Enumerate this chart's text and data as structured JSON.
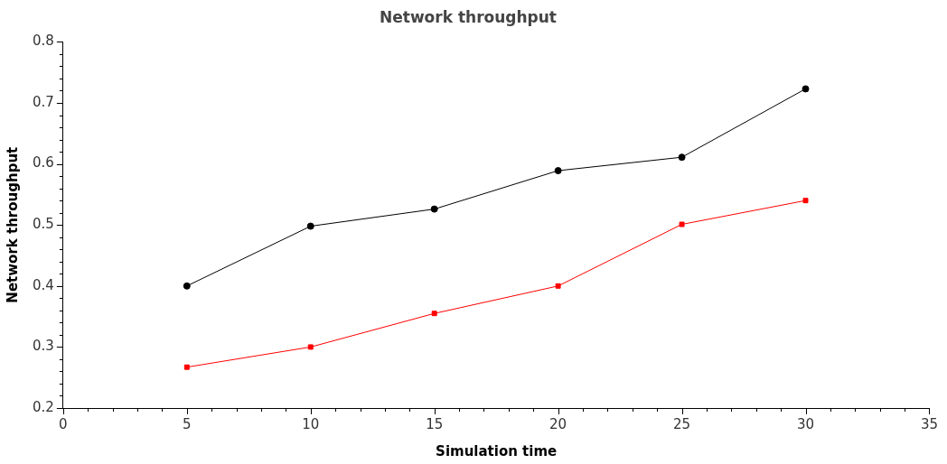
{
  "chart_data": {
    "type": "line",
    "title": "Network throughput",
    "xlabel": "Simulation time",
    "ylabel": "Network throughput",
    "x": [
      5,
      10,
      15,
      20,
      25,
      30
    ],
    "series": [
      {
        "color": "#000000",
        "marker": "circle",
        "values": [
          0.4,
          0.498,
          0.526,
          0.589,
          0.611,
          0.723
        ]
      },
      {
        "color": "#ff0000",
        "marker": "square",
        "values": [
          0.267,
          0.3,
          0.355,
          0.4,
          0.501,
          0.54
        ]
      }
    ],
    "xlim": [
      0,
      35
    ],
    "xticks": [
      0,
      {
        "value": 1,
        "label": null
      },
      {
        "value": 2,
        "label": null
      },
      {
        "value": 3,
        "label": null
      },
      {
        "value": 4,
        "label": null
      },
      5,
      {
        "value": 6,
        "label": null
      },
      {
        "value": 7,
        "label": null
      },
      {
        "value": 8,
        "label": null
      },
      {
        "value": 9,
        "label": null
      },
      10,
      {
        "value": 11,
        "label": null
      },
      {
        "value": 12,
        "label": null
      },
      {
        "value": 13,
        "label": null
      },
      {
        "value": 14,
        "label": null
      },
      15,
      {
        "value": 16,
        "label": null
      },
      {
        "value": 17,
        "label": null
      },
      {
        "value": 18,
        "label": null
      },
      {
        "value": 19,
        "label": null
      },
      20,
      {
        "value": 21,
        "label": null
      },
      {
        "value": 22,
        "label": null
      },
      {
        "value": 23,
        "label": null
      },
      {
        "value": 24,
        "label": null
      },
      25,
      {
        "value": 26,
        "label": null
      },
      {
        "value": 27,
        "label": null
      },
      {
        "value": 28,
        "label": null
      },
      {
        "value": 29,
        "label": null
      },
      30,
      {
        "value": 31,
        "label": null
      },
      {
        "value": 32,
        "label": null
      },
      {
        "value": 33,
        "label": null
      },
      {
        "value": 34,
        "label": null
      },
      35
    ],
    "ylim": [
      0.2,
      0.8
    ],
    "yticks": [
      0.2,
      {
        "value": 0.22,
        "label": null
      },
      {
        "value": 0.24,
        "label": null
      },
      {
        "value": 0.26,
        "label": null
      },
      {
        "value": 0.28,
        "label": null
      },
      0.3,
      {
        "value": 0.32,
        "label": null
      },
      {
        "value": 0.34,
        "label": null
      },
      {
        "value": 0.36,
        "label": null
      },
      {
        "value": 0.38,
        "label": null
      },
      0.4,
      {
        "value": 0.42,
        "label": null
      },
      {
        "value": 0.44,
        "label": null
      },
      {
        "value": 0.46,
        "label": null
      },
      {
        "value": 0.48,
        "label": null
      },
      0.5,
      {
        "value": 0.52,
        "label": null
      },
      {
        "value": 0.54,
        "label": null
      },
      {
        "value": 0.56,
        "label": null
      },
      {
        "value": 0.58,
        "label": null
      },
      0.6,
      {
        "value": 0.62,
        "label": null
      },
      {
        "value": 0.64,
        "label": null
      },
      {
        "value": 0.66,
        "label": null
      },
      {
        "value": 0.68,
        "label": null
      },
      0.7,
      {
        "value": 0.72,
        "label": null
      },
      {
        "value": 0.74,
        "label": null
      },
      {
        "value": 0.76,
        "label": null
      },
      {
        "value": 0.78,
        "label": null
      },
      0.8
    ],
    "grid": false,
    "legend": false,
    "line_style": "solid"
  }
}
